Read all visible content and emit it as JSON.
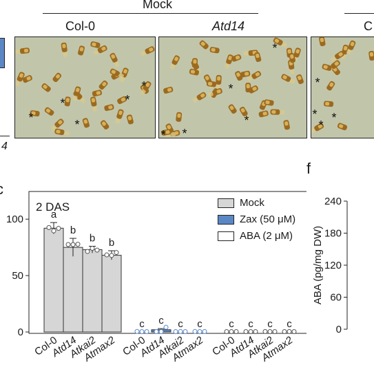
{
  "header": {
    "mock_label": "Mock",
    "col_labels": [
      "Col-0",
      "Atd14",
      "C"
    ],
    "left_fragment": "4"
  },
  "photo_panels": [
    {
      "name": "col0-mock-seeds",
      "asterisk_count": 6
    },
    {
      "name": "atd14-mock-seeds",
      "asterisk_count": 5
    },
    {
      "name": "partial-mock-seeds",
      "asterisk_count": 4
    }
  ],
  "panel_labels": {
    "f": "f",
    "left_fragment": "c"
  },
  "chart_data": [
    {
      "type": "bar",
      "title": "2 DAS",
      "ylabel": "",
      "ylim": [
        0,
        120
      ],
      "yticks": [
        0,
        50,
        100
      ],
      "categories": [
        "Col-0",
        "Atd14",
        "Atkai2",
        "Atmax2",
        "Col-0",
        "Atd14",
        "Atkai2",
        "Atmax2",
        "Col-0",
        "Atd14",
        "Atkai2",
        "Atmax2"
      ],
      "italic_flags": [
        false,
        true,
        true,
        true,
        false,
        true,
        true,
        true,
        false,
        true,
        true,
        true
      ],
      "series": [
        {
          "name": "Mock",
          "color": "#d6d6d6",
          "values": [
            92,
            75,
            73,
            68,
            0,
            0,
            0,
            0,
            0,
            0,
            0,
            0
          ],
          "errors": [
            5,
            8,
            3,
            4,
            0,
            0,
            0,
            0,
            0,
            0,
            0,
            0
          ]
        },
        {
          "name": "Zax (50 μM)",
          "color": "#5b87c5",
          "values": [
            0,
            0,
            0,
            0,
            0,
            2,
            0,
            0,
            0,
            0,
            0,
            0
          ],
          "errors": [
            0,
            0,
            0,
            0,
            0,
            1,
            0,
            0,
            0,
            0,
            0,
            0
          ]
        },
        {
          "name": "ABA (2 μM)",
          "color": "#ffffff",
          "values": [
            0,
            0,
            0,
            0,
            0,
            0,
            0,
            0,
            0,
            0,
            0,
            0
          ],
          "errors": [
            0,
            0,
            0,
            0,
            0,
            0,
            0,
            0,
            0,
            0,
            0,
            0
          ]
        }
      ],
      "significance_letters": [
        "a",
        "b",
        "b",
        "b",
        "c",
        "c",
        "c",
        "c",
        "c",
        "c",
        "c",
        "c"
      ],
      "legend_position": "top-right"
    },
    {
      "type": "bar",
      "title": "",
      "ylabel": "ABA (pg/mg DW)",
      "ylim": [
        0,
        240
      ],
      "yticks": [
        0,
        60,
        120,
        180,
        240
      ]
    }
  ]
}
